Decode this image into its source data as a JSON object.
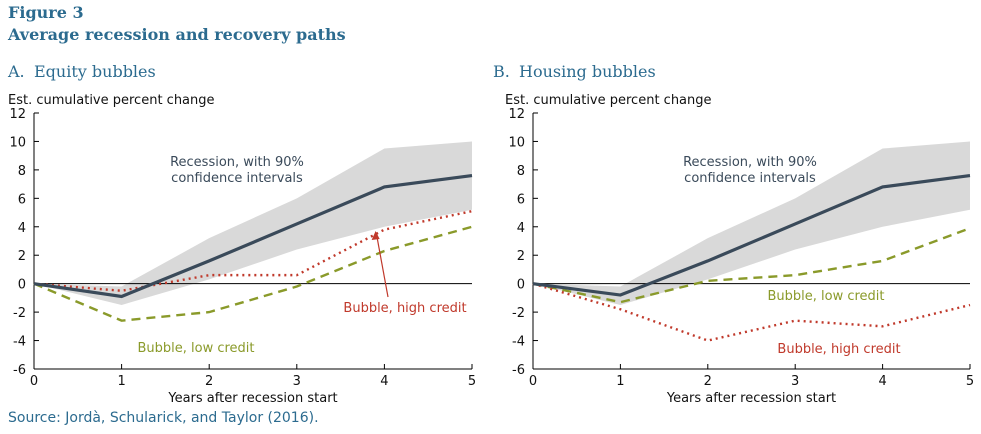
{
  "figure_label": "Figure 3",
  "figure_title": "Average recession and recovery paths",
  "source": "Source:  Jordà, Schularick, and Taylor (2016).",
  "colors": {
    "title": "#2c6b8f",
    "recession": "#3a4a5a",
    "band": "#d9d9d9",
    "low_credit": "#8a9a2a",
    "high_credit": "#c0392b"
  },
  "chart_data": [
    {
      "type": "line",
      "panel_letter": "A.",
      "title": "Equity bubbles",
      "ylabel": "Est. cumulative percent change",
      "xlabel": "Years after recession start",
      "x": [
        0,
        1,
        2,
        3,
        4,
        5
      ],
      "xlim": [
        0,
        5
      ],
      "ylim": [
        -6,
        12
      ],
      "yticks": [
        12,
        10,
        8,
        6,
        4,
        2,
        0,
        -2,
        -4,
        -6
      ],
      "band": {
        "lower": [
          0,
          -1.5,
          0.3,
          2.4,
          4.0,
          5.2
        ],
        "upper": [
          0,
          -0.2,
          3.2,
          6.0,
          9.5,
          10.0
        ]
      },
      "series": [
        {
          "key": "recession",
          "values": [
            0,
            -0.9,
            1.6,
            4.2,
            6.8,
            7.6
          ]
        },
        {
          "key": "low_credit",
          "values": [
            0,
            -2.6,
            -2.0,
            -0.2,
            2.3,
            4.0
          ]
        },
        {
          "key": "high_credit",
          "values": [
            0,
            -0.5,
            0.6,
            0.6,
            3.8,
            5.1
          ]
        }
      ],
      "annotations": {
        "recession": [
          "Recession, with 90%",
          "confidence intervals"
        ],
        "high_credit": "Bubble, high credit",
        "low_credit": "Bubble, low credit"
      }
    },
    {
      "type": "line",
      "panel_letter": "B.",
      "title": "Housing bubbles",
      "ylabel": "Est. cumulative percent change",
      "xlabel": "Years after recession start",
      "x": [
        0,
        1,
        2,
        3,
        4,
        5
      ],
      "xlim": [
        0,
        5
      ],
      "ylim": [
        -6,
        12
      ],
      "yticks": [
        12,
        10,
        8,
        6,
        4,
        2,
        0,
        -2,
        -4,
        -6
      ],
      "band": {
        "lower": [
          0,
          -1.5,
          0.3,
          2.4,
          4.0,
          5.2
        ],
        "upper": [
          0,
          -0.2,
          3.2,
          6.0,
          9.5,
          10.0
        ]
      },
      "series": [
        {
          "key": "recession",
          "values": [
            0,
            -0.8,
            1.6,
            4.2,
            6.8,
            7.6
          ]
        },
        {
          "key": "low_credit",
          "values": [
            0,
            -1.3,
            0.2,
            0.6,
            1.6,
            3.9
          ]
        },
        {
          "key": "high_credit",
          "values": [
            0,
            -1.8,
            -4.0,
            -2.6,
            -3.0,
            -1.5
          ]
        }
      ],
      "annotations": {
        "recession": [
          "Recession, with 90%",
          "confidence intervals"
        ],
        "low_credit": "Bubble, low credit",
        "high_credit": "Bubble, high credit"
      }
    }
  ]
}
